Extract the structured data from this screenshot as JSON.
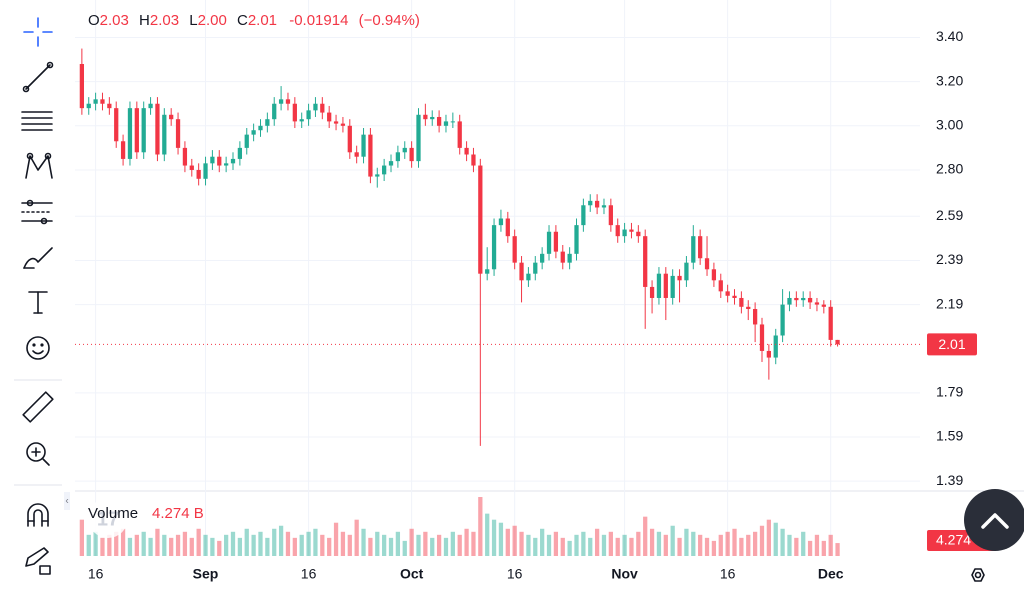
{
  "chart_data": {
    "type": "candlestick",
    "legend": [
      {
        "key": "O",
        "value": "2.03"
      },
      {
        "key": "H",
        "value": "2.03"
      },
      {
        "key": "L",
        "value": "2.00"
      },
      {
        "key": "C",
        "value": "2.01"
      }
    ],
    "change": "-0.01914",
    "change_pct": "(−0.94%)",
    "open": [
      3.28,
      3.08,
      3.1,
      3.12,
      3.1,
      3.08,
      2.93,
      2.85,
      3.08,
      2.88,
      3.08,
      3.1,
      2.87,
      3.05,
      3.03,
      2.9,
      2.82,
      2.8,
      2.76,
      2.83,
      2.86,
      2.82,
      2.83,
      2.85,
      2.9,
      2.96,
      2.98,
      3.0,
      3.03,
      3.1,
      3.12,
      3.1,
      3.02,
      3.03,
      3.07,
      3.1,
      3.06,
      3.02,
      3.01,
      3.0,
      2.88,
      2.86,
      2.96,
      2.77,
      2.78,
      2.82,
      2.84,
      2.88,
      2.9,
      2.84,
      3.05,
      3.03,
      3.04,
      3.0,
      3.02,
      3.02,
      2.9,
      2.87,
      2.82,
      2.33,
      2.35,
      2.55,
      2.58,
      2.5,
      2.38,
      2.3,
      2.33,
      2.38,
      2.42,
      2.52,
      2.43,
      2.38,
      2.42,
      2.55,
      2.64,
      2.66,
      2.63,
      2.64,
      2.55,
      2.5,
      2.53,
      2.52,
      2.5,
      2.27,
      2.22,
      2.33,
      2.22,
      2.32,
      2.3,
      2.38,
      2.5,
      2.4,
      2.35,
      2.3,
      2.25,
      2.23,
      2.22,
      2.18,
      2.17,
      2.1,
      1.98,
      1.95,
      2.05,
      2.19,
      2.22,
      2.21,
      2.22,
      2.2,
      2.19,
      2.18,
      2.03
    ],
    "high": [
      3.35,
      3.13,
      3.15,
      3.15,
      3.13,
      3.11,
      2.96,
      3.11,
      3.11,
      3.11,
      3.13,
      3.13,
      3.08,
      3.08,
      3.06,
      2.93,
      2.85,
      2.83,
      2.86,
      2.89,
      2.89,
      2.86,
      2.88,
      2.93,
      2.99,
      3.01,
      3.03,
      3.06,
      3.13,
      3.18,
      3.15,
      3.13,
      3.06,
      3.1,
      3.13,
      3.13,
      3.09,
      3.05,
      3.04,
      3.03,
      2.91,
      2.99,
      2.99,
      2.81,
      2.85,
      2.87,
      2.91,
      2.93,
      2.93,
      3.08,
      3.1,
      3.07,
      3.07,
      3.05,
      3.06,
      3.05,
      2.93,
      2.9,
      2.85,
      2.45,
      2.58,
      2.62,
      2.61,
      2.53,
      2.41,
      2.36,
      2.41,
      2.45,
      2.55,
      2.55,
      2.46,
      2.45,
      2.58,
      2.67,
      2.69,
      2.69,
      2.67,
      2.67,
      2.58,
      2.56,
      2.56,
      2.55,
      2.53,
      2.3,
      2.36,
      2.36,
      2.35,
      2.35,
      2.41,
      2.55,
      2.53,
      2.5,
      2.38,
      2.33,
      2.28,
      2.26,
      2.25,
      2.21,
      2.2,
      2.13,
      2.01,
      2.08,
      2.26,
      2.25,
      2.25,
      2.25,
      2.25,
      2.22,
      2.21,
      2.21,
      2.03
    ],
    "low": [
      3.05,
      3.05,
      3.07,
      3.07,
      3.05,
      2.9,
      2.82,
      2.82,
      2.85,
      2.85,
      3.05,
      2.84,
      2.84,
      3.0,
      2.87,
      2.79,
      2.77,
      2.73,
      2.73,
      2.8,
      2.79,
      2.79,
      2.8,
      2.82,
      2.87,
      2.93,
      2.95,
      2.97,
      3.0,
      3.07,
      3.07,
      2.99,
      2.99,
      3.0,
      3.04,
      3.03,
      2.99,
      2.98,
      2.97,
      2.85,
      2.83,
      2.83,
      2.74,
      2.72,
      2.75,
      2.79,
      2.81,
      2.85,
      2.81,
      2.81,
      3.0,
      3.0,
      2.97,
      2.97,
      2.99,
      2.87,
      2.84,
      2.79,
      1.55,
      2.3,
      2.32,
      2.52,
      2.47,
      2.35,
      2.2,
      2.27,
      2.3,
      2.35,
      2.39,
      2.4,
      2.35,
      2.35,
      2.39,
      2.52,
      2.61,
      2.6,
      2.6,
      2.52,
      2.47,
      2.47,
      2.49,
      2.47,
      2.08,
      2.15,
      2.19,
      2.12,
      2.19,
      2.2,
      2.27,
      2.35,
      2.37,
      2.32,
      2.27,
      2.22,
      2.2,
      2.19,
      2.15,
      2.12,
      2.02,
      1.93,
      1.85,
      1.92,
      2.02,
      2.16,
      2.18,
      2.18,
      2.17,
      2.16,
      2.15,
      2.0,
      2.0
    ],
    "close": [
      3.08,
      3.1,
      3.12,
      3.1,
      3.08,
      2.93,
      2.85,
      3.08,
      2.88,
      3.08,
      3.1,
      2.87,
      3.05,
      3.03,
      2.9,
      2.82,
      2.8,
      2.76,
      2.83,
      2.86,
      2.82,
      2.83,
      2.85,
      2.9,
      2.96,
      2.98,
      3.0,
      3.03,
      3.1,
      3.12,
      3.1,
      3.02,
      3.03,
      3.07,
      3.1,
      3.06,
      3.02,
      3.01,
      3.0,
      2.88,
      2.86,
      2.96,
      2.77,
      2.78,
      2.82,
      2.84,
      2.88,
      2.9,
      2.84,
      3.05,
      3.03,
      3.04,
      3.0,
      3.02,
      3.02,
      2.9,
      2.87,
      2.82,
      2.33,
      2.35,
      2.55,
      2.58,
      2.5,
      2.38,
      2.3,
      2.33,
      2.38,
      2.42,
      2.52,
      2.43,
      2.38,
      2.42,
      2.55,
      2.64,
      2.66,
      2.63,
      2.64,
      2.55,
      2.5,
      2.53,
      2.52,
      2.5,
      2.27,
      2.22,
      2.33,
      2.22,
      2.32,
      2.3,
      2.38,
      2.5,
      2.4,
      2.35,
      2.3,
      2.25,
      2.23,
      2.22,
      2.18,
      2.17,
      2.1,
      1.98,
      1.95,
      2.05,
      2.19,
      2.22,
      2.21,
      2.22,
      2.2,
      2.19,
      2.18,
      2.03,
      2.01
    ],
    "up_color": "#22ab94",
    "down_color": "#f23645",
    "volume": {
      "name": "Volume",
      "label": "4.274 B",
      "values": [
        12,
        7,
        8,
        6,
        7,
        8,
        9,
        6,
        7,
        8,
        6,
        9,
        7,
        6,
        7,
        8,
        6,
        9,
        7,
        6,
        5,
        7,
        8,
        6,
        9,
        7,
        8,
        6,
        9,
        10,
        8,
        6,
        7,
        8,
        9,
        7,
        6,
        11,
        8,
        7,
        12,
        9,
        6,
        8,
        7,
        6,
        8,
        5,
        9,
        7,
        8,
        6,
        7,
        6,
        8,
        7,
        9,
        8,
        19.5,
        14,
        12,
        11,
        9,
        10,
        8,
        7,
        6,
        9,
        7,
        8,
        6,
        5,
        7,
        8,
        6,
        9,
        7,
        8,
        6,
        7,
        6,
        8,
        13,
        9,
        8,
        7,
        10,
        6,
        9,
        8,
        7,
        6,
        5,
        7,
        8,
        9,
        6,
        7,
        8,
        10,
        12,
        11,
        9,
        7,
        6,
        8,
        5,
        7,
        5,
        7,
        4.274
      ]
    },
    "xlim": [
      -1,
      122
    ],
    "xticks": [
      {
        "value": 2,
        "label": "16"
      },
      {
        "value": 18,
        "label": "Sep"
      },
      {
        "value": 33,
        "label": "16"
      },
      {
        "value": 48,
        "label": "Oct"
      },
      {
        "value": 63,
        "label": "16"
      },
      {
        "value": 79,
        "label": "Nov"
      },
      {
        "value": 94,
        "label": "16"
      },
      {
        "value": 109,
        "label": "Dec"
      }
    ],
    "ylim": [
      1.35,
      3.57
    ],
    "yticks": [
      {
        "value": 3.4,
        "label": "3.40"
      },
      {
        "value": 3.2,
        "label": "3.20"
      },
      {
        "value": 3,
        "label": "3.00"
      },
      {
        "value": 2.8,
        "label": "2.80"
      },
      2.59,
      2.39,
      2.19,
      1.79,
      1.59,
      1.39
    ],
    "grid": true
  }
}
